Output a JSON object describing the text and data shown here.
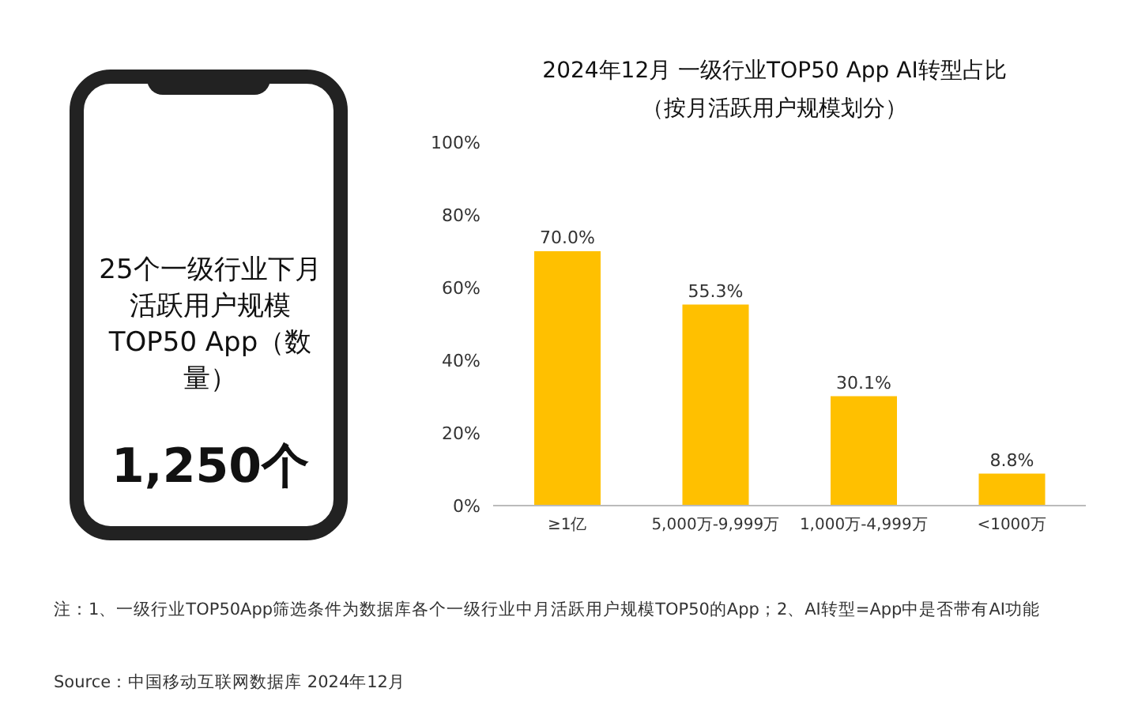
{
  "chart_data": {
    "type": "bar",
    "title": "2024年12月 一级行业TOP50 App AI转型占比",
    "subtitle": "（按月活跃用户规模划分）",
    "categories": [
      "≥1亿",
      "5,000万-9,999万",
      "1,000万-4,999万",
      "<1000万"
    ],
    "values": [
      70.0,
      55.3,
      30.1,
      8.8
    ],
    "value_labels": [
      "70.0%",
      "55.3%",
      "30.1%",
      "8.8%"
    ],
    "color": "#ffc000",
    "ylim": [
      0,
      100
    ],
    "yticks": [
      {
        "value": 0,
        "label": "0%"
      },
      {
        "value": 20,
        "label": "20%"
      },
      {
        "value": 40,
        "label": "40%"
      },
      {
        "value": 60,
        "label": "60%"
      },
      {
        "value": 80,
        "label": "80%"
      },
      {
        "value": 100,
        "label": "100%"
      }
    ],
    "grid": false,
    "legend": false,
    "annotations": [
      "25个一级行业下月活跃用户规模TOP50 App（数量）",
      "1,250个",
      "注：1、一级行业TOP50App筛选条件为数据库各个一级行业中月活跃用户规模TOP50的App；2、AI转型=App中是否带有AI功能",
      "Source：中国移动互联网数据库 2024年12月"
    ]
  }
}
